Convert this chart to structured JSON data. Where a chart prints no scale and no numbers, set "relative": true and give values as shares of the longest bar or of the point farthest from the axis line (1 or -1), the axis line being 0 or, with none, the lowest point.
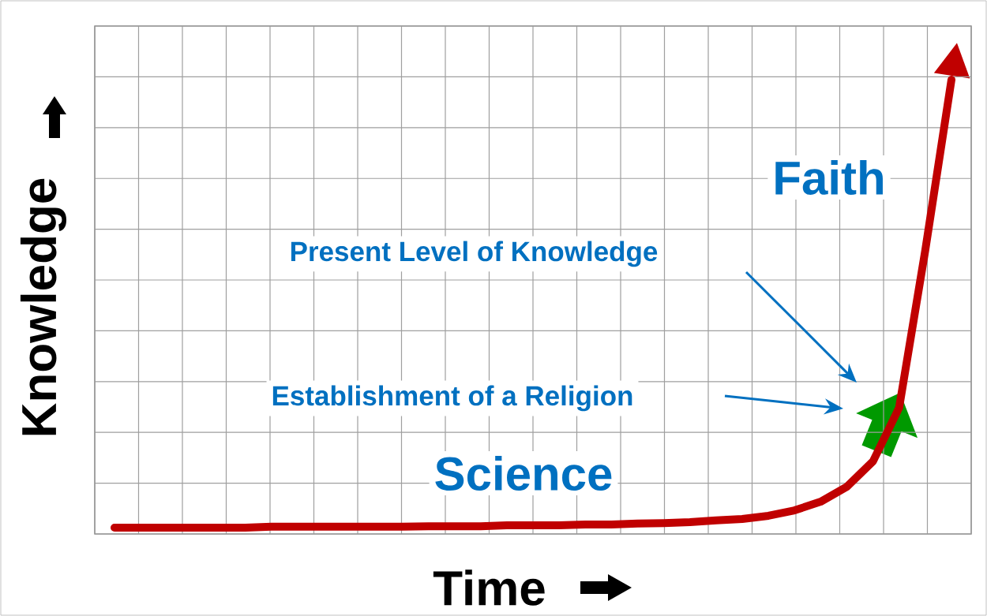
{
  "chart_data": {
    "type": "line",
    "relative": true,
    "grid": true,
    "xlabel": "Time",
    "ylabel": "Knowledge",
    "categories": [
      null,
      null,
      null,
      null,
      null,
      null,
      null,
      null,
      null,
      null,
      null,
      null,
      null,
      null,
      null,
      null,
      null,
      null,
      null,
      null,
      null,
      null,
      null,
      null,
      null,
      null,
      null,
      null,
      null,
      null,
      null,
      null,
      null
    ],
    "series": [
      {
        "color": "#c00000",
        "values": [
          0.014,
          0.014,
          0.014,
          0.014,
          0.014,
          0.014,
          0.016,
          0.016,
          0.016,
          0.016,
          0.016,
          0.016,
          0.017,
          0.017,
          0.017,
          0.019,
          0.019,
          0.019,
          0.021,
          0.021,
          0.023,
          0.024,
          0.026,
          0.03,
          0.033,
          0.04,
          0.052,
          0.071,
          0.104,
          0.16,
          0.278,
          0.625,
          1
        ]
      }
    ],
    "annotations": [
      "Faith",
      "Present Level of Knowledge",
      "Establishment of a Religion",
      "Science"
    ]
  }
}
